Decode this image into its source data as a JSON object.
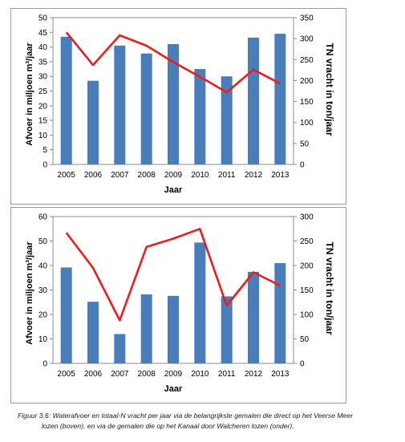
{
  "chart_data": [
    {
      "type": "bar",
      "categories": [
        "2005",
        "2006",
        "2007",
        "2008",
        "2009",
        "2010",
        "2011",
        "2012",
        "2013"
      ],
      "series": [
        {
          "kind": "bar",
          "axis": "left",
          "color": "#4a7ebb",
          "values": [
            43.5,
            28.5,
            40.5,
            37.8,
            41.0,
            32.5,
            30.0,
            43.2,
            44.5
          ]
        },
        {
          "kind": "line",
          "axis": "right",
          "color": "#ee1c1c",
          "values": [
            315,
            237,
            308,
            283,
            244,
            209,
            172,
            226,
            193
          ]
        }
      ],
      "xlabel": "Jaar",
      "ylabel": "Afvoer in miljoen m³/jaar",
      "ylabel_right": "TN vracht in ton/jaar",
      "ylim": [
        0,
        50
      ],
      "yticks": [
        "0",
        "5",
        "10",
        "15",
        "20",
        "25",
        "30",
        "35",
        "40",
        "45",
        "50"
      ],
      "ylim_right": [
        0,
        350
      ],
      "yticks_right": [
        "0",
        "50",
        "100",
        "150",
        "200",
        "250",
        "300",
        "350"
      ]
    },
    {
      "type": "bar",
      "categories": [
        "2005",
        "2006",
        "2007",
        "2008",
        "2009",
        "2010",
        "2011",
        "2012",
        "2013"
      ],
      "series": [
        {
          "kind": "bar",
          "axis": "left",
          "color": "#4a7ebb",
          "values": [
            39.2,
            25.2,
            12.0,
            28.2,
            27.6,
            49.4,
            27.4,
            37.4,
            41.0
          ]
        },
        {
          "kind": "line",
          "axis": "right",
          "color": "#ee1c1c",
          "values": [
            267,
            195,
            88,
            238,
            255,
            275,
            118,
            186,
            159
          ]
        }
      ],
      "xlabel": "Jaar",
      "ylabel": "Afvoer in miljoen m³/jaar",
      "ylabel_right": "TN vracht in ton/jaar",
      "ylim": [
        0,
        60
      ],
      "yticks": [
        "0",
        "10",
        "20",
        "30",
        "40",
        "50",
        "60"
      ],
      "ylim_right": [
        0,
        300
      ],
      "yticks_right": [
        "0",
        "50",
        "100",
        "150",
        "200",
        "250",
        "300"
      ]
    }
  ],
  "caption": {
    "line1": "Figuur 3.6: Waterafvoer en totaal-N vracht per jaar via de belangrijkste gemalen die direct op het Veerse Meer",
    "line2": "lozen (boven), en via de gemalen die op het Kanaal door Walcheren lozen (onder)."
  }
}
